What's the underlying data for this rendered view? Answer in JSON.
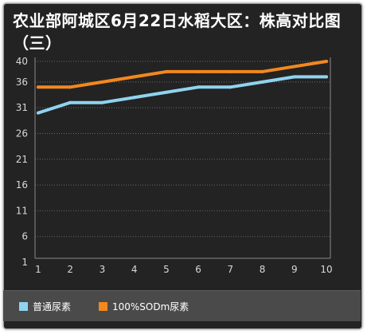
{
  "title": "农业部阿城区6月22日水稻大区：株高对比图（三）",
  "chart_data": {
    "type": "line",
    "title": "农业部阿城区6月22日水稻大区：株高对比图（三）",
    "xlabel": "",
    "ylabel": "",
    "categories": [
      "1",
      "2",
      "3",
      "4",
      "5",
      "6",
      "7",
      "8",
      "9",
      "10"
    ],
    "y_ticks": [
      1,
      6,
      11,
      16,
      21,
      26,
      31,
      36,
      40
    ],
    "ylim": [
      1,
      40
    ],
    "grid": true,
    "legend_position": "bottom",
    "series": [
      {
        "name": "普通尿素",
        "color": "#8fd3ef",
        "values": [
          30,
          32,
          32,
          33,
          34,
          35,
          35,
          36,
          37,
          37
        ]
      },
      {
        "name": "100%SODm尿素",
        "color": "#f2881e",
        "values": [
          35,
          35,
          36,
          37,
          38,
          38,
          38,
          38,
          39,
          40
        ]
      }
    ]
  }
}
